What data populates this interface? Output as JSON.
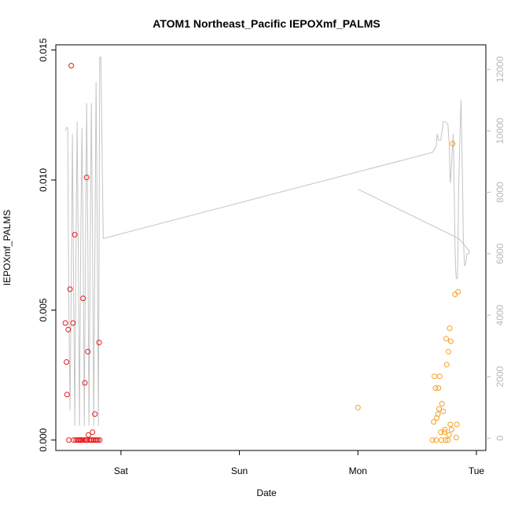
{
  "chart_data": {
    "type": "scatter",
    "title": "ATOM1 Northeast_Pacific IEPOXmf_PALMS",
    "xlabel": "Date",
    "ylabel": "IEPOXmf_PALMS",
    "x_ticks": [
      {
        "label": "Sat",
        "day": 1
      },
      {
        "label": "Sun",
        "day": 2
      },
      {
        "label": "Mon",
        "day": 3
      },
      {
        "label": "Tue",
        "day": 4
      }
    ],
    "xlim_days": [
      0.45,
      4.08
    ],
    "ylim": [
      -0.0004,
      0.0152
    ],
    "y_ticks": [
      {
        "value": 0.0,
        "label": "0.000"
      },
      {
        "value": 0.005,
        "label": "0.005"
      },
      {
        "value": 0.01,
        "label": "0.010"
      },
      {
        "value": 0.015,
        "label": "0.015"
      }
    ],
    "y2lim": [
      -400,
      12800
    ],
    "y2_ticks": [
      {
        "value": 0,
        "label": "0"
      },
      {
        "value": 2000,
        "label": "2000"
      },
      {
        "value": 4000,
        "label": "4000"
      },
      {
        "value": 6000,
        "label": "6000"
      },
      {
        "value": 8000,
        "label": "8000"
      },
      {
        "value": 10000,
        "label": "10000"
      },
      {
        "value": 12000,
        "label": "12000"
      }
    ],
    "colors": {
      "red": "#e8191b",
      "orange": "#f5a020",
      "line": "#c4c4c4"
    },
    "series": [
      {
        "color": "red",
        "points": [
          [
            0.53,
            0.0045
          ],
          [
            0.54,
            0.003
          ],
          [
            0.545,
            0.00175
          ],
          [
            0.555,
            0.00425
          ],
          [
            0.56,
            0.0
          ],
          [
            0.57,
            0.0058
          ],
          [
            0.58,
            0.0144
          ],
          [
            0.595,
            0.0045
          ],
          [
            0.6,
            0.0
          ],
          [
            0.61,
            0.0079
          ],
          [
            0.62,
            0.0
          ],
          [
            0.635,
            0.0
          ],
          [
            0.645,
            0.0
          ],
          [
            0.655,
            0.0
          ],
          [
            0.66,
            0.0
          ],
          [
            0.67,
            0.0
          ],
          [
            0.675,
            0.0
          ],
          [
            0.68,
            0.00545
          ],
          [
            0.69,
            0.0
          ],
          [
            0.695,
            0.0022
          ],
          [
            0.705,
            0.0
          ],
          [
            0.71,
            0.0101
          ],
          [
            0.715,
            0.0
          ],
          [
            0.72,
            0.0034
          ],
          [
            0.725,
            0.0002
          ],
          [
            0.735,
            0.0
          ],
          [
            0.745,
            0.0
          ],
          [
            0.755,
            0.0
          ],
          [
            0.76,
            0.0003
          ],
          [
            0.77,
            0.0
          ],
          [
            0.78,
            0.001
          ],
          [
            0.785,
            0.0
          ],
          [
            0.795,
            0.0
          ],
          [
            0.805,
            0.0
          ],
          [
            0.815,
            0.00375
          ],
          [
            0.82,
            0.0
          ]
        ]
      },
      {
        "color": "orange",
        "points": [
          [
            3.0,
            0.00125
          ],
          [
            3.63,
            0.0
          ],
          [
            3.64,
            0.0007
          ],
          [
            3.645,
            0.00245
          ],
          [
            3.655,
            0.002
          ],
          [
            3.66,
            0.0
          ],
          [
            3.665,
            0.00085
          ],
          [
            3.675,
            0.001
          ],
          [
            3.68,
            0.002
          ],
          [
            3.685,
            0.0012
          ],
          [
            3.69,
            0.00245
          ],
          [
            3.7,
            0.0003
          ],
          [
            3.705,
            0.0
          ],
          [
            3.71,
            0.0014
          ],
          [
            3.72,
            0.0011
          ],
          [
            3.73,
            0.0003
          ],
          [
            3.735,
            0.0004
          ],
          [
            3.74,
            0.0
          ],
          [
            3.745,
            0.0039
          ],
          [
            3.75,
            0.0029
          ],
          [
            3.76,
            0.0
          ],
          [
            3.765,
            0.0034
          ],
          [
            3.77,
            0.0002
          ],
          [
            3.775,
            0.0043
          ],
          [
            3.78,
            0.0006
          ],
          [
            3.785,
            0.0038
          ],
          [
            3.79,
            0.0004
          ],
          [
            3.8,
            0.0114
          ],
          [
            3.82,
            0.0056
          ],
          [
            3.83,
            0.0001
          ],
          [
            3.835,
            0.0006
          ],
          [
            3.845,
            0.0057
          ]
        ]
      }
    ],
    "secondary_line": {
      "color": "line",
      "points": [
        [
          0.53,
          10000
        ],
        [
          0.54,
          10100
        ],
        [
          0.55,
          10100
        ],
        [
          0.56,
          4000
        ],
        [
          0.57,
          900
        ],
        [
          0.58,
          5000
        ],
        [
          0.59,
          9900
        ],
        [
          0.6,
          5000
        ],
        [
          0.61,
          400
        ],
        [
          0.62,
          6000
        ],
        [
          0.63,
          10300
        ],
        [
          0.64,
          6000
        ],
        [
          0.65,
          400
        ],
        [
          0.66,
          6000
        ],
        [
          0.67,
          10100
        ],
        [
          0.68,
          6500
        ],
        [
          0.69,
          400
        ],
        [
          0.7,
          6000
        ],
        [
          0.71,
          10900
        ],
        [
          0.72,
          6500
        ],
        [
          0.73,
          400
        ],
        [
          0.74,
          6000
        ],
        [
          0.75,
          10900
        ],
        [
          0.76,
          6500
        ],
        [
          0.77,
          400
        ],
        [
          0.78,
          6000
        ],
        [
          0.79,
          11600
        ],
        [
          0.8,
          6500
        ],
        [
          0.81,
          400
        ],
        [
          0.815,
          6000
        ],
        [
          0.82,
          12400
        ],
        [
          0.83,
          12400
        ],
        [
          0.85,
          6500
        ],
        [
          3.63,
          9300
        ],
        [
          3.66,
          9500
        ],
        [
          3.67,
          9900
        ],
        [
          3.68,
          9700
        ],
        [
          3.7,
          9700
        ],
        [
          3.72,
          10300
        ],
        [
          3.74,
          10300
        ],
        [
          3.76,
          10200
        ],
        [
          3.77,
          9600
        ],
        [
          3.78,
          8300
        ],
        [
          3.785,
          8500
        ],
        [
          3.79,
          8900
        ],
        [
          3.8,
          9600
        ],
        [
          3.805,
          9900
        ],
        [
          3.81,
          8800
        ],
        [
          3.815,
          7500
        ],
        [
          3.82,
          6200
        ],
        [
          3.825,
          5500
        ],
        [
          3.83,
          5200
        ],
        [
          3.84,
          5200
        ],
        [
          3.845,
          6200
        ],
        [
          3.85,
          8000
        ],
        [
          3.86,
          9600
        ],
        [
          3.87,
          11000
        ],
        [
          3.88,
          9000
        ],
        [
          3.89,
          6500
        ],
        [
          3.9,
          5600
        ],
        [
          3.91,
          5700
        ],
        [
          3.92,
          6000
        ],
        [
          3.93,
          6000
        ],
        [
          3.935,
          6000
        ],
        [
          3.94,
          6100
        ],
        [
          3.85,
          6500
        ],
        [
          3.0,
          8100
        ]
      ]
    }
  }
}
